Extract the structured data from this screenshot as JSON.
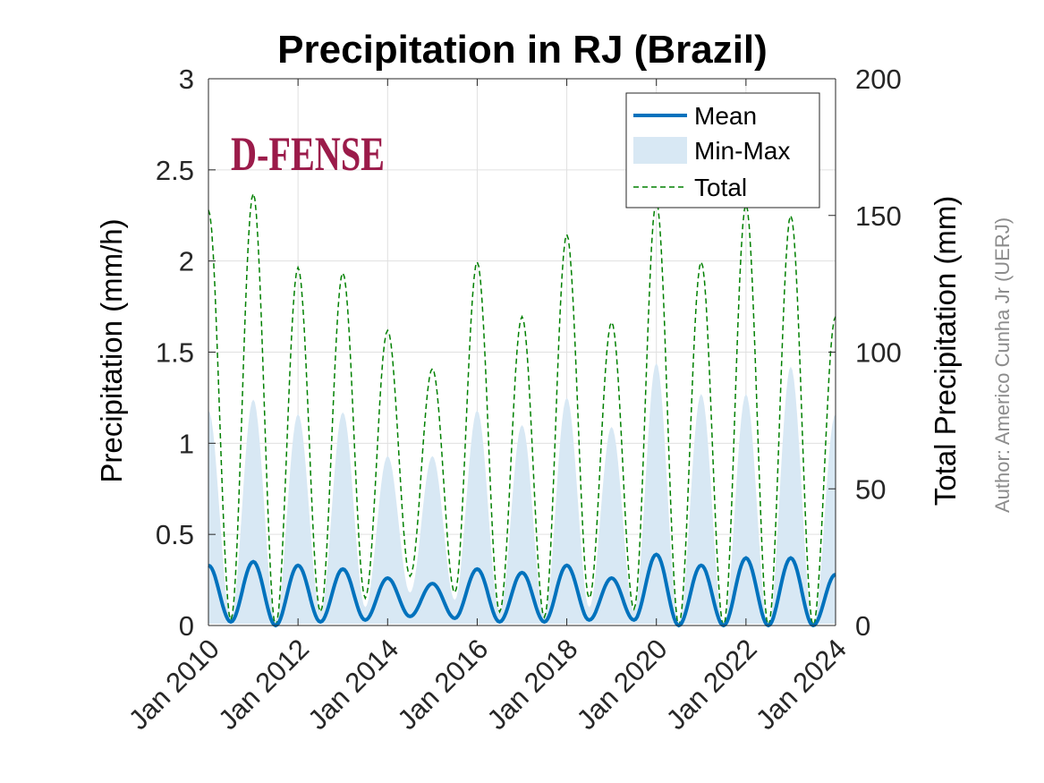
{
  "chart_data": {
    "type": "line",
    "title": "Precipitation in RJ (Brazil)",
    "ylabel_left": "Precipitation (mm/h)",
    "ylabel_right": "Total Precipitation (mm)",
    "x_ticks": [
      "Jan 2010",
      "Jan 2012",
      "Jan 2014",
      "Jan 2016",
      "Jan 2018",
      "Jan 2020",
      "Jan 2022",
      "Jan 2024"
    ],
    "xlim": [
      "2010-01",
      "2024-01"
    ],
    "ylim_left": [
      0,
      3
    ],
    "ylim_right": [
      0,
      200
    ],
    "y_ticks_left": [
      "0",
      "0.5",
      "1",
      "1.5",
      "2",
      "2.5",
      "3"
    ],
    "y_ticks_right": [
      "0",
      "50",
      "100",
      "150",
      "200"
    ],
    "grid": true,
    "legend_position": "top-right",
    "legend": [
      "Mean",
      "Min-Max",
      "Total"
    ],
    "series": [
      {
        "name": "Mean",
        "axis": "left",
        "style": "solid",
        "color": "#0072BD",
        "peaks": [
          {
            "x": "2010-01",
            "y": 0.33
          },
          {
            "x": "2011-01",
            "y": 0.35
          },
          {
            "x": "2012-01",
            "y": 0.33
          },
          {
            "x": "2013-01",
            "y": 0.31
          },
          {
            "x": "2014-01",
            "y": 0.26
          },
          {
            "x": "2015-01",
            "y": 0.23
          },
          {
            "x": "2016-01",
            "y": 0.31
          },
          {
            "x": "2017-01",
            "y": 0.29
          },
          {
            "x": "2018-01",
            "y": 0.33
          },
          {
            "x": "2019-01",
            "y": 0.26
          },
          {
            "x": "2020-01",
            "y": 0.39
          },
          {
            "x": "2021-01",
            "y": 0.33
          },
          {
            "x": "2022-01",
            "y": 0.37
          },
          {
            "x": "2023-01",
            "y": 0.37
          },
          {
            "x": "2024-01",
            "y": 0.28
          }
        ],
        "troughs": [
          {
            "x": "2010-07",
            "y": 0.02
          },
          {
            "x": "2011-07",
            "y": 0.0
          },
          {
            "x": "2012-07",
            "y": 0.02
          },
          {
            "x": "2013-07",
            "y": 0.03
          },
          {
            "x": "2014-07",
            "y": 0.05
          },
          {
            "x": "2015-07",
            "y": 0.04
          },
          {
            "x": "2016-07",
            "y": 0.02
          },
          {
            "x": "2017-07",
            "y": 0.02
          },
          {
            "x": "2018-07",
            "y": 0.03
          },
          {
            "x": "2019-07",
            "y": 0.03
          },
          {
            "x": "2020-07",
            "y": 0.0
          },
          {
            "x": "2021-07",
            "y": 0.0
          },
          {
            "x": "2022-07",
            "y": 0.0
          },
          {
            "x": "2023-07",
            "y": 0.0
          }
        ]
      },
      {
        "name": "Min-Max",
        "axis": "left",
        "style": "band",
        "color": "#D8E8F4",
        "max_peaks": [
          {
            "x": "2010-01",
            "y": 1.18
          },
          {
            "x": "2011-01",
            "y": 1.24
          },
          {
            "x": "2012-01",
            "y": 1.16
          },
          {
            "x": "2013-01",
            "y": 1.17
          },
          {
            "x": "2014-01",
            "y": 0.93
          },
          {
            "x": "2015-01",
            "y": 0.93
          },
          {
            "x": "2016-01",
            "y": 1.18
          },
          {
            "x": "2017-01",
            "y": 1.1
          },
          {
            "x": "2018-01",
            "y": 1.25
          },
          {
            "x": "2019-01",
            "y": 1.09
          },
          {
            "x": "2020-01",
            "y": 1.44
          },
          {
            "x": "2021-01",
            "y": 1.27
          },
          {
            "x": "2022-01",
            "y": 1.27
          },
          {
            "x": "2023-01",
            "y": 1.42
          },
          {
            "x": "2024-01",
            "y": 1.16
          }
        ],
        "max_troughs": [
          {
            "x": "2010-07",
            "y": 0.05
          },
          {
            "x": "2011-07",
            "y": 0.03
          },
          {
            "x": "2012-07",
            "y": 0.08
          },
          {
            "x": "2013-07",
            "y": 0.1
          },
          {
            "x": "2014-07",
            "y": 0.18
          },
          {
            "x": "2015-07",
            "y": 0.14
          },
          {
            "x": "2016-07",
            "y": 0.08
          },
          {
            "x": "2017-07",
            "y": 0.06
          },
          {
            "x": "2018-07",
            "y": 0.1
          },
          {
            "x": "2019-07",
            "y": 0.08
          },
          {
            "x": "2020-07",
            "y": 0.02
          },
          {
            "x": "2021-07",
            "y": 0.0
          },
          {
            "x": "2022-07",
            "y": 0.0
          },
          {
            "x": "2023-07",
            "y": 0.0
          }
        ],
        "min": 0.01
      },
      {
        "name": "Total",
        "axis": "right",
        "style": "dashed",
        "color": "#008000",
        "peaks": [
          {
            "x": "2010-01",
            "y": 152
          },
          {
            "x": "2011-01",
            "y": 158
          },
          {
            "x": "2012-01",
            "y": 131
          },
          {
            "x": "2013-01",
            "y": 129
          },
          {
            "x": "2014-01",
            "y": 108
          },
          {
            "x": "2015-01",
            "y": 94
          },
          {
            "x": "2016-01",
            "y": 133
          },
          {
            "x": "2017-01",
            "y": 113
          },
          {
            "x": "2018-01",
            "y": 143
          },
          {
            "x": "2019-01",
            "y": 111
          },
          {
            "x": "2020-01",
            "y": 155
          },
          {
            "x": "2021-01",
            "y": 133
          },
          {
            "x": "2022-01",
            "y": 154
          },
          {
            "x": "2023-01",
            "y": 150
          },
          {
            "x": "2024-01",
            "y": 113
          }
        ],
        "troughs": [
          {
            "x": "2010-07",
            "y": 2
          },
          {
            "x": "2011-07",
            "y": 0
          },
          {
            "x": "2012-07",
            "y": 5
          },
          {
            "x": "2013-07",
            "y": 10
          },
          {
            "x": "2014-07",
            "y": 18
          },
          {
            "x": "2015-07",
            "y": 12
          },
          {
            "x": "2016-07",
            "y": 5
          },
          {
            "x": "2017-07",
            "y": 3
          },
          {
            "x": "2018-07",
            "y": 10
          },
          {
            "x": "2019-07",
            "y": 6
          },
          {
            "x": "2020-07",
            "y": 0
          },
          {
            "x": "2021-07",
            "y": 0
          },
          {
            "x": "2022-07",
            "y": 0
          },
          {
            "x": "2023-07",
            "y": 0
          }
        ]
      }
    ]
  },
  "logo": {
    "text": "D-FENSE",
    "color": "#9B1B4A"
  },
  "author": {
    "text": "Author: Americo Cunha Jr (UERJ)",
    "color": "#8C8C8C"
  },
  "colors": {
    "axis": "#262626",
    "grid": "#E0E0E0"
  }
}
